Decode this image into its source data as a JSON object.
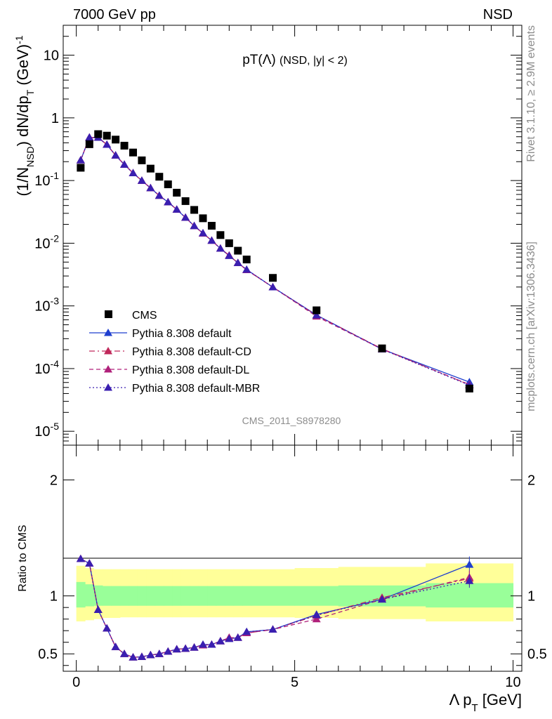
{
  "header": {
    "left": "7000 GeV pp",
    "right": "NSD"
  },
  "side_labels": {
    "rivet": "Rivet 3.1.10, ≥ 2.9M events",
    "mcplots": "mcplots.cern.ch [arXiv:1306.3436]"
  },
  "chart_data": {
    "type": "scatter",
    "title": "pT(Λ) (NSD, |y| < 2)",
    "watermark": "CMS_2011_S8978280",
    "xlabel": "Λ p_T [GeV]",
    "ylabel": "(1/N_NSD) dN/dp_T (GeV)^-1",
    "ratio_ylabel": "Ratio to CMS",
    "xlim": [
      -0.3,
      10.2
    ],
    "ylim": [
      6e-06,
      30
    ],
    "yscale": "log",
    "ratio_ylim": [
      0.35,
      2.3
    ],
    "x_ticks": [
      "0",
      "5",
      "10"
    ],
    "y_ticks": [
      "10",
      "1",
      "10^-1",
      "10^-2",
      "10^-3",
      "10^-4",
      "10^-5"
    ],
    "ratio_y_ticks": [
      "0.5",
      "1",
      "2"
    ],
    "legend_position": "bottom-left",
    "colors": {
      "cms": "#000000",
      "default": "#1f3fcf",
      "cd": "#c0285a",
      "dl": "#b0207a",
      "mbr": "#3a1fb0",
      "band_inner": "#99ff99",
      "band_outer": "#ffff99"
    },
    "x": [
      0.1,
      0.3,
      0.5,
      0.7,
      0.9,
      1.1,
      1.3,
      1.5,
      1.7,
      1.9,
      2.1,
      2.3,
      2.5,
      2.7,
      2.9,
      3.1,
      3.3,
      3.5,
      3.7,
      3.9,
      4.5,
      5.5,
      7.0,
      9.0
    ],
    "cms": {
      "name": "CMS",
      "values": [
        0.16,
        0.38,
        0.55,
        0.52,
        0.45,
        0.36,
        0.28,
        0.21,
        0.155,
        0.115,
        0.087,
        0.064,
        0.047,
        0.034,
        0.025,
        0.019,
        0.0135,
        0.01,
        0.0076,
        0.0055,
        0.0028,
        0.00085,
        0.00021,
        4.8e-05
      ]
    },
    "band": {
      "x_edges": [
        0,
        0.2,
        0.4,
        0.6,
        0.8,
        1.0,
        1.2,
        1.4,
        1.6,
        1.8,
        2.0,
        2.2,
        2.4,
        2.6,
        2.8,
        3.0,
        3.2,
        3.4,
        3.6,
        3.8,
        4.0,
        5.0,
        6.0,
        8.0,
        10.0
      ],
      "inner_lo": [
        0.9,
        0.91,
        0.915,
        0.915,
        0.915,
        0.915,
        0.915,
        0.915,
        0.915,
        0.915,
        0.915,
        0.915,
        0.915,
        0.915,
        0.915,
        0.915,
        0.915,
        0.915,
        0.915,
        0.915,
        0.915,
        0.915,
        0.91,
        0.9
      ],
      "inner_hi": [
        1.12,
        1.1,
        1.09,
        1.085,
        1.085,
        1.085,
        1.085,
        1.085,
        1.085,
        1.085,
        1.085,
        1.085,
        1.085,
        1.085,
        1.085,
        1.085,
        1.085,
        1.085,
        1.085,
        1.085,
        1.085,
        1.085,
        1.09,
        1.11
      ],
      "outer_lo": [
        0.78,
        0.79,
        0.8,
        0.81,
        0.81,
        0.815,
        0.815,
        0.815,
        0.815,
        0.815,
        0.815,
        0.815,
        0.815,
        0.815,
        0.815,
        0.815,
        0.815,
        0.815,
        0.815,
        0.815,
        0.815,
        0.81,
        0.8,
        0.78
      ],
      "outer_hi": [
        1.26,
        1.24,
        1.23,
        1.23,
        1.23,
        1.23,
        1.23,
        1.23,
        1.23,
        1.23,
        1.23,
        1.23,
        1.23,
        1.23,
        1.23,
        1.23,
        1.23,
        1.23,
        1.23,
        1.23,
        1.23,
        1.24,
        1.25,
        1.28
      ]
    },
    "series": [
      {
        "key": "default",
        "name": "Pythia 8.308 default",
        "dash": "",
        "ratio": [
          1.32,
          1.28,
          0.88,
          0.72,
          0.56,
          0.5,
          0.47,
          0.475,
          0.49,
          0.5,
          0.52,
          0.54,
          0.545,
          0.555,
          0.58,
          0.58,
          0.61,
          0.63,
          0.64,
          0.69,
          0.71,
          0.84,
          0.97,
          1.27
        ],
        "ratio_err": [
          0,
          0,
          0,
          0,
          0,
          0,
          0,
          0,
          0,
          0,
          0,
          0,
          0,
          0,
          0,
          0,
          0,
          0,
          0,
          0,
          0,
          0,
          0.015,
          0.07
        ]
      },
      {
        "key": "cd",
        "name": "Pythia 8.308 default-CD",
        "dash": "8,4,2,4",
        "ratio": [
          1.32,
          1.28,
          0.88,
          0.72,
          0.56,
          0.5,
          0.47,
          0.475,
          0.49,
          0.5,
          0.52,
          0.54,
          0.545,
          0.555,
          0.575,
          0.58,
          0.61,
          0.64,
          0.64,
          0.68,
          0.71,
          0.83,
          0.985,
          1.15
        ],
        "ratio_err": [
          0,
          0,
          0,
          0,
          0,
          0,
          0,
          0,
          0,
          0,
          0,
          0,
          0,
          0,
          0,
          0,
          0,
          0,
          0,
          0,
          0,
          0,
          0.015,
          0.06
        ]
      },
      {
        "key": "dl",
        "name": "Pythia 8.308 default-DL",
        "dash": "6,4",
        "ratio": [
          1.32,
          1.28,
          0.88,
          0.72,
          0.56,
          0.5,
          0.47,
          0.475,
          0.49,
          0.5,
          0.52,
          0.54,
          0.545,
          0.555,
          0.575,
          0.58,
          0.61,
          0.64,
          0.64,
          0.68,
          0.71,
          0.8,
          0.97,
          1.16
        ],
        "ratio_err": [
          0,
          0,
          0,
          0,
          0,
          0,
          0,
          0,
          0,
          0,
          0,
          0,
          0,
          0,
          0,
          0,
          0,
          0,
          0,
          0,
          0,
          0,
          0.015,
          0.06
        ]
      },
      {
        "key": "mbr",
        "name": "Pythia 8.308 default-MBR",
        "dash": "2,3",
        "ratio": [
          1.32,
          1.28,
          0.88,
          0.72,
          0.56,
          0.5,
          0.47,
          0.475,
          0.49,
          0.5,
          0.52,
          0.54,
          0.545,
          0.555,
          0.58,
          0.58,
          0.61,
          0.63,
          0.64,
          0.69,
          0.71,
          0.835,
          0.97,
          1.13
        ],
        "ratio_err": [
          0,
          0,
          0,
          0,
          0,
          0,
          0,
          0,
          0,
          0,
          0,
          0,
          0,
          0,
          0,
          0,
          0,
          0,
          0,
          0,
          0,
          0,
          0.015,
          0.06
        ]
      }
    ]
  }
}
